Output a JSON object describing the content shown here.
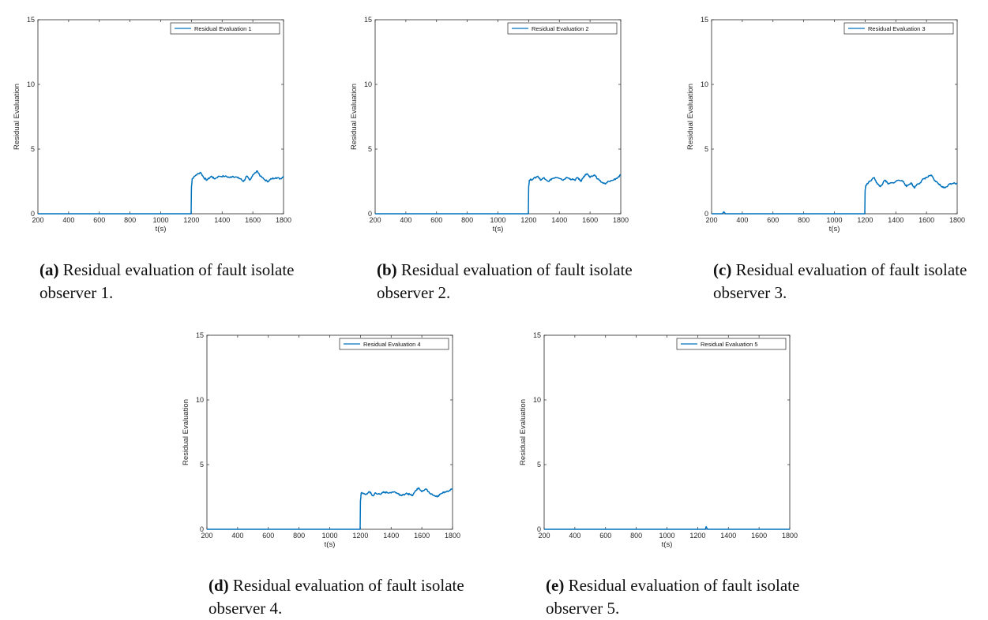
{
  "chart_data": [
    {
      "type": "line",
      "panel": "(a)",
      "caption": "Residual evaluation of fault isolate observer 1.",
      "xlabel": "t(s)",
      "ylabel": "Residual Evaluation",
      "xlim": [
        200,
        1800
      ],
      "ylim": [
        0,
        15
      ],
      "xticks": [
        200,
        400,
        600,
        800,
        1000,
        1200,
        1400,
        1600,
        1800
      ],
      "yticks": [
        0,
        5,
        10,
        15
      ],
      "legend": "Residual Evaluation 1",
      "color": "#0072BD",
      "series": [
        {
          "name": "Residual Evaluation 1",
          "x": [
            200,
            1198,
            1200,
            1205,
            1230,
            1260,
            1280,
            1300,
            1330,
            1350,
            1380,
            1420,
            1450,
            1470,
            1500,
            1520,
            1540,
            1560,
            1580,
            1600,
            1630,
            1650,
            1680,
            1700,
            1720,
            1750,
            1780,
            1800
          ],
          "y": [
            0,
            0,
            2.0,
            2.7,
            3.0,
            3.2,
            2.8,
            2.6,
            2.9,
            2.7,
            2.9,
            2.9,
            2.8,
            2.9,
            2.8,
            2.7,
            2.5,
            2.9,
            2.6,
            3.0,
            3.3,
            2.9,
            2.6,
            2.5,
            2.7,
            2.8,
            2.7,
            2.9
          ]
        }
      ]
    },
    {
      "type": "line",
      "panel": "(b)",
      "caption": "Residual evaluation of fault isolate observer 2.",
      "xlabel": "t(s)",
      "ylabel": "Residual Evaluation",
      "xlim": [
        200,
        1800
      ],
      "ylim": [
        0,
        15
      ],
      "xticks": [
        200,
        400,
        600,
        800,
        1000,
        1200,
        1400,
        1600,
        1800
      ],
      "yticks": [
        0,
        5,
        10,
        15
      ],
      "legend": "Residual Evaluation 2",
      "color": "#0072BD",
      "series": [
        {
          "name": "Residual Evaluation 2",
          "x": [
            200,
            1198,
            1200,
            1205,
            1230,
            1260,
            1280,
            1300,
            1330,
            1350,
            1380,
            1420,
            1450,
            1470,
            1500,
            1520,
            1540,
            1560,
            1580,
            1600,
            1630,
            1650,
            1680,
            1700,
            1720,
            1750,
            1780,
            1800
          ],
          "y": [
            0,
            0,
            2.1,
            2.6,
            2.7,
            2.9,
            2.6,
            2.8,
            2.5,
            2.7,
            2.8,
            2.6,
            2.8,
            2.7,
            2.6,
            2.8,
            2.5,
            2.9,
            3.1,
            2.8,
            3.0,
            2.7,
            2.4,
            2.3,
            2.5,
            2.6,
            2.8,
            3.0
          ]
        }
      ]
    },
    {
      "type": "line",
      "panel": "(c)",
      "caption": "Residual evaluation of fault isolate observer 3.",
      "xlabel": "t(s)",
      "ylabel": "Residual Evaluation",
      "xlim": [
        200,
        1800
      ],
      "ylim": [
        0,
        15
      ],
      "xticks": [
        200,
        400,
        600,
        800,
        1000,
        1200,
        1400,
        1600,
        1800
      ],
      "yticks": [
        0,
        5,
        10,
        15
      ],
      "legend": "Residual Evaluation 3",
      "color": "#0072BD",
      "series": [
        {
          "name": "Residual Evaluation 3",
          "x": [
            200,
            270,
            280,
            290,
            300,
            1198,
            1200,
            1205,
            1230,
            1260,
            1280,
            1300,
            1330,
            1350,
            1380,
            1420,
            1450,
            1470,
            1500,
            1520,
            1540,
            1560,
            1580,
            1600,
            1630,
            1650,
            1680,
            1700,
            1720,
            1750,
            1780,
            1800
          ],
          "y": [
            0,
            0,
            0.15,
            0,
            0,
            0,
            1.8,
            2.2,
            2.5,
            2.8,
            2.3,
            2.1,
            2.6,
            2.3,
            2.4,
            2.6,
            2.5,
            2.1,
            2.4,
            2.0,
            2.3,
            2.4,
            2.7,
            2.8,
            3.0,
            2.6,
            2.3,
            2.1,
            2.0,
            2.3,
            2.4,
            2.3
          ]
        }
      ]
    },
    {
      "type": "line",
      "panel": "(d)",
      "caption": "Residual evaluation of fault isolate observer 4.",
      "xlabel": "t(s)",
      "ylabel": "Residual Evaluation",
      "xlim": [
        200,
        1800
      ],
      "ylim": [
        0,
        15
      ],
      "xticks": [
        200,
        400,
        600,
        800,
        1000,
        1200,
        1400,
        1600,
        1800
      ],
      "yticks": [
        0,
        5,
        10,
        15
      ],
      "legend": "Residual Evaluation 4",
      "color": "#0072BD",
      "series": [
        {
          "name": "Residual Evaluation 4",
          "x": [
            200,
            1198,
            1200,
            1205,
            1230,
            1260,
            1280,
            1300,
            1330,
            1350,
            1380,
            1420,
            1450,
            1470,
            1500,
            1520,
            1540,
            1560,
            1580,
            1600,
            1630,
            1650,
            1680,
            1700,
            1720,
            1750,
            1780,
            1800
          ],
          "y": [
            0,
            0,
            2.2,
            2.8,
            2.7,
            2.9,
            2.6,
            2.8,
            2.7,
            2.9,
            2.8,
            2.9,
            2.7,
            2.6,
            2.8,
            2.7,
            2.6,
            3.0,
            3.2,
            2.9,
            3.1,
            2.8,
            2.6,
            2.5,
            2.7,
            2.9,
            3.0,
            3.1
          ]
        }
      ]
    },
    {
      "type": "line",
      "panel": "(e)",
      "caption": "Residual evaluation of fault isolate observer 5.",
      "xlabel": "t(s)",
      "ylabel": "Residual Evaluation",
      "xlim": [
        200,
        1800
      ],
      "ylim": [
        0,
        15
      ],
      "xticks": [
        200,
        400,
        600,
        800,
        1000,
        1200,
        1400,
        1600,
        1800
      ],
      "yticks": [
        0,
        5,
        10,
        15
      ],
      "legend": "Residual Evaluation 5",
      "color": "#0072BD",
      "series": [
        {
          "name": "Residual Evaluation 5",
          "x": [
            200,
            1250,
            1255,
            1260,
            1265,
            1800
          ],
          "y": [
            0,
            0,
            0.2,
            0.1,
            0,
            0
          ]
        }
      ]
    }
  ]
}
